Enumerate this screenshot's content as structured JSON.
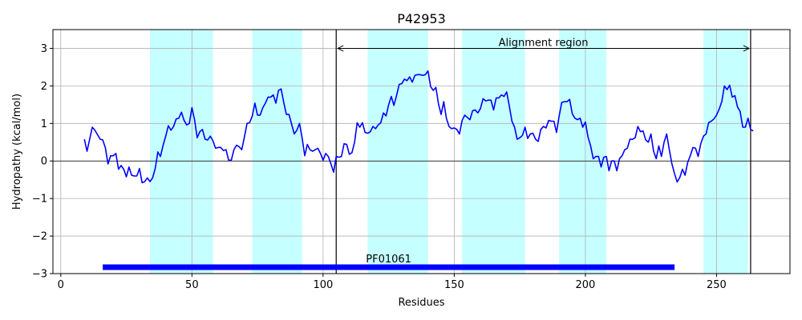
{
  "chart_data": {
    "type": "line",
    "title": "P42953",
    "xlabel": "Residues",
    "ylabel": "Hydropathy (kcal/mol)",
    "xlim": [
      -3,
      278
    ],
    "ylim": [
      -3,
      3.5
    ],
    "xticks": [
      0,
      50,
      100,
      150,
      200,
      250
    ],
    "yticks": [
      -3,
      -2,
      -1,
      0,
      1,
      2,
      3
    ],
    "xtick_labels": [
      "0",
      "50",
      "100",
      "150",
      "200",
      "250"
    ],
    "ytick_labels": [
      "−3",
      "−2",
      "−1",
      "0",
      "1",
      "2",
      "3"
    ],
    "grid": true,
    "zero_line": 0,
    "series": [
      {
        "color": "#0000ff",
        "x": [
          9,
          10,
          12,
          13,
          15,
          16,
          17,
          18,
          19,
          20,
          21,
          22,
          23,
          24,
          25,
          26,
          27,
          28,
          29,
          30,
          31,
          32,
          33,
          34,
          35,
          36,
          37,
          38,
          39,
          40,
          41,
          42,
          43,
          44,
          45,
          46,
          47,
          48,
          49,
          50,
          51,
          52,
          53,
          54,
          55,
          56,
          57,
          58,
          59,
          60,
          61,
          62,
          63,
          64,
          65,
          66,
          67,
          68,
          69,
          70,
          71,
          72,
          73,
          74,
          75,
          76,
          77,
          78,
          79,
          80,
          81,
          82,
          83,
          84,
          85,
          86,
          87,
          88,
          89,
          90,
          91,
          92,
          93,
          94,
          95,
          96,
          97,
          98,
          99,
          100,
          101,
          102,
          103,
          104,
          105,
          106,
          107,
          108,
          109,
          110,
          111,
          112,
          113,
          114,
          115,
          116,
          117,
          118,
          119,
          120,
          121,
          122,
          123,
          124,
          125,
          126,
          127,
          128,
          129,
          130,
          131,
          132,
          133,
          134,
          135,
          136,
          137,
          138,
          139,
          140,
          141,
          142,
          143,
          144,
          145,
          146,
          147,
          148,
          149,
          150,
          151,
          152,
          153,
          154,
          155,
          156,
          157,
          158,
          159,
          160,
          161,
          162,
          163,
          164,
          165,
          166,
          167,
          168,
          169,
          170,
          171,
          172,
          173,
          174,
          175,
          176,
          177,
          178,
          179,
          180,
          181,
          182,
          183,
          184,
          185,
          186,
          187,
          188,
          189,
          190,
          191,
          192,
          193,
          194,
          195,
          196,
          197,
          198,
          199,
          200,
          201,
          202,
          203,
          204,
          205,
          206,
          207,
          208,
          209,
          210,
          211,
          212,
          213,
          214,
          215,
          216,
          217,
          218,
          219,
          220,
          221,
          222,
          223,
          224,
          225,
          226,
          227,
          228,
          229,
          230,
          231,
          232,
          233,
          234,
          235,
          236,
          237,
          238,
          239,
          240,
          241,
          242,
          243,
          244,
          245,
          246,
          247,
          248,
          249,
          250,
          251,
          252,
          253,
          254,
          255,
          256,
          257,
          258,
          259,
          260,
          261,
          262,
          263,
          264
        ],
        "y": [
          0.58,
          0.26,
          0.9,
          0.82,
          0.58,
          0.56,
          0.35,
          -0.08,
          0.14,
          0.14,
          0.2,
          -0.22,
          -0.12,
          -0.22,
          -0.42,
          -0.16,
          -0.38,
          -0.4,
          -0.4,
          -0.2,
          -0.58,
          -0.55,
          -0.45,
          -0.55,
          -0.45,
          -0.2,
          0.24,
          0.12,
          0.42,
          0.66,
          0.94,
          0.82,
          0.92,
          1.12,
          1.14,
          1.3,
          1.08,
          0.96,
          1.0,
          1.42,
          1.1,
          0.62,
          0.78,
          0.84,
          0.58,
          0.56,
          0.66,
          0.54,
          0.34,
          0.36,
          0.36,
          0.28,
          0.3,
          0.02,
          0.02,
          0.3,
          0.42,
          0.38,
          0.3,
          0.64,
          1.0,
          1.02,
          1.2,
          1.54,
          1.22,
          1.22,
          1.42,
          1.54,
          1.7,
          1.7,
          1.76,
          1.54,
          1.88,
          1.92,
          1.56,
          1.24,
          1.24,
          0.98,
          0.72,
          0.82,
          1.0,
          0.62,
          0.14,
          0.44,
          0.3,
          0.26,
          0.3,
          0.34,
          0.2,
          0.02,
          0.2,
          0.12,
          -0.08,
          -0.3,
          0.12,
          0.1,
          0.12,
          0.46,
          0.44,
          0.18,
          0.22,
          0.5,
          1.02,
          0.9,
          1.02,
          0.76,
          0.74,
          0.78,
          0.92,
          0.86,
          0.96,
          1.02,
          1.28,
          1.2,
          1.5,
          1.72,
          1.48,
          1.74,
          2.04,
          2.06,
          2.18,
          2.14,
          2.24,
          2.1,
          2.28,
          2.3,
          2.3,
          2.28,
          2.3,
          2.4,
          1.98,
          1.88,
          1.96,
          1.52,
          1.24,
          1.58,
          1.14,
          0.92,
          0.86,
          0.88,
          0.84,
          0.72,
          1.08,
          1.22,
          1.16,
          1.1,
          1.34,
          1.36,
          1.28,
          1.4,
          1.66,
          1.6,
          1.62,
          1.62,
          1.36,
          1.68,
          1.68,
          1.76,
          1.72,
          1.84,
          1.46,
          1.06,
          0.9,
          0.58,
          0.62,
          0.68,
          0.9,
          0.6,
          0.72,
          0.74,
          0.58,
          0.52,
          0.84,
          0.92,
          0.88,
          1.08,
          1.06,
          1.06,
          0.76,
          1.2,
          1.56,
          1.58,
          1.58,
          1.64,
          1.26,
          1.14,
          1.1,
          1.14,
          0.9,
          1.04,
          0.64,
          0.4,
          0.06,
          0.12,
          0.12,
          -0.16,
          0.1,
          0.12,
          -0.26,
          0.0,
          0.0,
          -0.26,
          0.06,
          0.14,
          0.3,
          0.34,
          0.58,
          0.58,
          0.62,
          0.92,
          0.78,
          0.8,
          0.56,
          0.5,
          0.72,
          0.26,
          0.06,
          0.4,
          0.12,
          0.5,
          0.72,
          0.3,
          -0.08,
          -0.34,
          -0.56,
          -0.44,
          -0.22,
          -0.38,
          -0.04,
          0.14,
          0.36,
          0.34,
          0.12,
          0.46,
          0.66,
          0.72,
          1.02,
          1.06,
          1.12,
          1.22,
          1.38,
          1.58,
          2.0,
          1.9,
          2.02,
          1.7,
          1.74,
          1.44,
          1.32,
          0.9,
          0.9,
          1.14,
          0.84,
          0.8
        ]
      }
    ],
    "shaded_regions": [
      [
        34,
        58
      ],
      [
        73,
        92
      ],
      [
        117,
        140
      ],
      [
        153,
        177
      ],
      [
        190,
        208
      ],
      [
        245,
        262
      ]
    ],
    "shade_color": "#c6ffff",
    "alignment_region": {
      "label": "Alignment region",
      "start": 105,
      "end": 263
    },
    "domain_bar": {
      "label": "PF01061",
      "start": 16,
      "end": 234,
      "y": -2.83,
      "color": "#0000ff"
    }
  }
}
